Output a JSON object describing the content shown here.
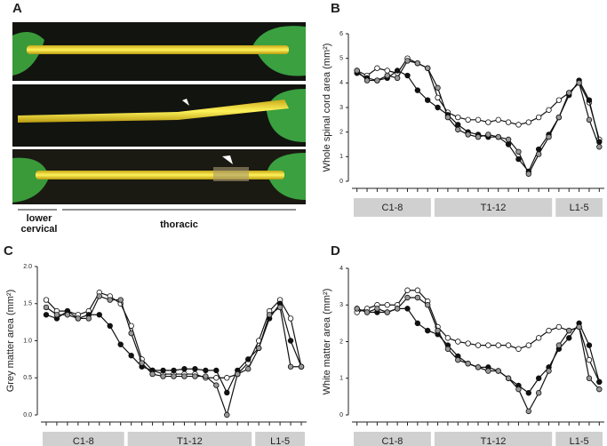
{
  "panel_a": {
    "label": "A",
    "regions": [
      "lower cervical",
      "thoracic"
    ]
  },
  "chart_data": [
    {
      "type": "line",
      "panel": "B",
      "y_label": "Whole spinal cord area (mm²)",
      "categories": [
        null,
        null,
        null,
        null,
        null,
        null,
        null,
        null,
        null,
        null,
        null,
        null,
        null,
        null,
        null,
        null,
        null,
        null,
        null,
        null,
        null,
        null,
        null,
        null,
        null
      ],
      "groups": [
        "C1-8",
        "T1-12",
        "L1-5"
      ],
      "ylim": [
        0,
        6
      ],
      "yticks": [
        0,
        1,
        2,
        3,
        4,
        5,
        6
      ],
      "series": [
        {
          "color": "#ffffff",
          "values": [
            4.5,
            4.3,
            4.6,
            4.5,
            4.4,
            5.0,
            4.8,
            4.6,
            3.4,
            2.8,
            2.6,
            2.5,
            2.5,
            2.4,
            2.5,
            2.4,
            2.3,
            2.4,
            2.6,
            2.9,
            3.3,
            3.6,
            4.0,
            3.2,
            1.7
          ]
        },
        {
          "color": "#111111",
          "values": [
            4.4,
            4.2,
            4.1,
            4.2,
            4.5,
            4.3,
            3.7,
            3.3,
            3.0,
            2.7,
            2.3,
            2.0,
            1.9,
            1.8,
            1.8,
            1.5,
            0.9,
            0.4,
            1.3,
            1.9,
            2.6,
            3.5,
            4.1,
            3.3,
            1.6
          ]
        },
        {
          "color": "#999999",
          "values": [
            4.5,
            4.1,
            4.1,
            4.3,
            4.2,
            4.9,
            4.8,
            4.6,
            3.8,
            2.6,
            2.1,
            1.9,
            1.8,
            1.9,
            1.8,
            1.7,
            1.2,
            0.3,
            1.1,
            1.8,
            2.6,
            3.6,
            4.0,
            2.5,
            1.4
          ]
        }
      ]
    },
    {
      "type": "line",
      "panel": "C",
      "y_label": "Grey matter area (mm²)",
      "categories": [
        null,
        null,
        null,
        null,
        null,
        null,
        null,
        null,
        null,
        null,
        null,
        null,
        null,
        null,
        null,
        null,
        null,
        null,
        null,
        null,
        null,
        null,
        null,
        null,
        null
      ],
      "groups": [
        "C1-8",
        "T1-12",
        "L1-5"
      ],
      "ylim": [
        0,
        2
      ],
      "yticks": [
        {
          "value": 0,
          "label": "0.0"
        },
        {
          "value": 0.5,
          "label": "0.5"
        },
        {
          "value": 1,
          "label": "1.0"
        },
        {
          "value": 1.5,
          "label": "1.5"
        },
        {
          "value": 2,
          "label": "2.0"
        }
      ],
      "series": [
        {
          "color": "#ffffff",
          "values": [
            1.55,
            1.4,
            1.4,
            1.35,
            1.4,
            1.65,
            1.6,
            1.5,
            1.2,
            0.75,
            0.6,
            0.55,
            0.55,
            0.55,
            0.55,
            0.5,
            0.5,
            0.5,
            0.55,
            0.7,
            1.0,
            1.4,
            1.55,
            1.3,
            0.65
          ]
        },
        {
          "color": "#111111",
          "values": [
            1.35,
            1.3,
            1.4,
            1.3,
            1.35,
            1.35,
            1.2,
            0.95,
            0.8,
            0.65,
            0.6,
            0.6,
            0.6,
            0.62,
            0.62,
            0.6,
            0.6,
            0.3,
            0.6,
            0.75,
            0.9,
            1.3,
            1.5,
            1.0,
            0.65
          ]
        },
        {
          "color": "#999999",
          "values": [
            1.45,
            1.35,
            1.35,
            1.3,
            1.3,
            1.6,
            1.55,
            1.55,
            1.1,
            0.7,
            0.55,
            0.52,
            0.52,
            0.52,
            0.52,
            0.52,
            0.4,
            0.0,
            0.55,
            0.62,
            0.9,
            1.35,
            1.45,
            0.65,
            0.65
          ]
        }
      ]
    },
    {
      "type": "line",
      "panel": "D",
      "y_label": "White matter area (mm²)",
      "categories": [
        null,
        null,
        null,
        null,
        null,
        null,
        null,
        null,
        null,
        null,
        null,
        null,
        null,
        null,
        null,
        null,
        null,
        null,
        null,
        null,
        null,
        null,
        null,
        null,
        null
      ],
      "groups": [
        "C1-8",
        "T1-12",
        "L1-5"
      ],
      "ylim": [
        0,
        4
      ],
      "yticks": [
        0,
        1,
        2,
        3,
        4
      ],
      "series": [
        {
          "color": "#ffffff",
          "values": [
            2.8,
            2.9,
            3.0,
            3.0,
            3.0,
            3.4,
            3.4,
            3.1,
            2.4,
            2.1,
            2.0,
            1.95,
            1.9,
            1.9,
            1.9,
            1.9,
            1.8,
            1.9,
            2.1,
            2.3,
            2.4,
            2.3,
            2.4,
            1.5,
            0.9
          ]
        },
        {
          "color": "#111111",
          "values": [
            2.9,
            2.8,
            2.8,
            2.8,
            2.9,
            2.9,
            2.5,
            2.3,
            2.2,
            1.9,
            1.6,
            1.4,
            1.3,
            1.3,
            1.2,
            1.0,
            0.8,
            0.6,
            1.0,
            1.3,
            1.8,
            2.1,
            2.5,
            1.9,
            0.9
          ]
        },
        {
          "color": "#999999",
          "values": [
            2.9,
            2.8,
            2.9,
            2.8,
            2.9,
            3.2,
            3.2,
            3.0,
            2.3,
            1.8,
            1.5,
            1.4,
            1.3,
            1.2,
            1.2,
            1.0,
            0.7,
            0.1,
            0.6,
            1.2,
            1.9,
            2.3,
            2.4,
            1.0,
            0.7
          ]
        }
      ]
    }
  ]
}
